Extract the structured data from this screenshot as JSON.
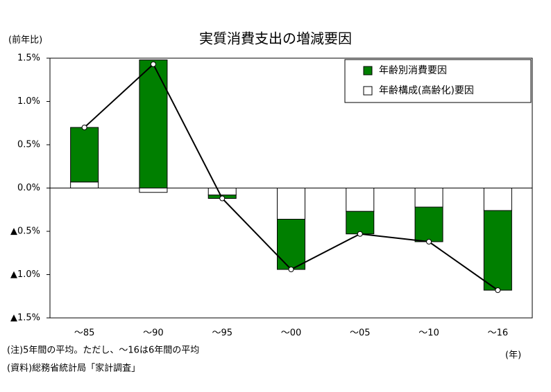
{
  "chart_data": {
    "type": "bar",
    "title": "実質消費支出の増減要因",
    "y_label": "(前年比)",
    "x_label": "(年)",
    "notes": [
      "(注)5年間の平均。ただし、～16は6年間の平均",
      "(資料)総務省統計局「家計調査」"
    ],
    "categories": [
      "～85",
      "～90",
      "～95",
      "～00",
      "～05",
      "～10",
      "～16"
    ],
    "series": [
      {
        "name": "年齢別消費要因",
        "color": "#007f00",
        "values": [
          0.63,
          1.48,
          -0.04,
          -0.58,
          -0.26,
          -0.4,
          -0.92
        ]
      },
      {
        "name": "年齢構成(高齢化)要因",
        "color": "#ffffff",
        "values": [
          0.07,
          -0.05,
          -0.08,
          -0.36,
          -0.27,
          -0.22,
          -0.26
        ]
      }
    ],
    "line": {
      "color": "#000000",
      "values": [
        0.7,
        1.43,
        -0.12,
        -0.94,
        -0.53,
        -0.62,
        -1.18
      ]
    },
    "ylim": [
      -1.5,
      1.5
    ],
    "yticks": [
      {
        "value": -1.5,
        "label": "▲1.5%"
      },
      {
        "value": -1.0,
        "label": "▲1.0%"
      },
      {
        "value": -0.5,
        "label": "▲0.5%"
      },
      {
        "value": 0,
        "label": "0.0%"
      },
      {
        "value": 0.5,
        "label": "0.5%"
      },
      {
        "value": 1.0,
        "label": "1.0%"
      },
      {
        "value": 1.5,
        "label": "1.5%"
      }
    ],
    "legend": "upper right"
  }
}
